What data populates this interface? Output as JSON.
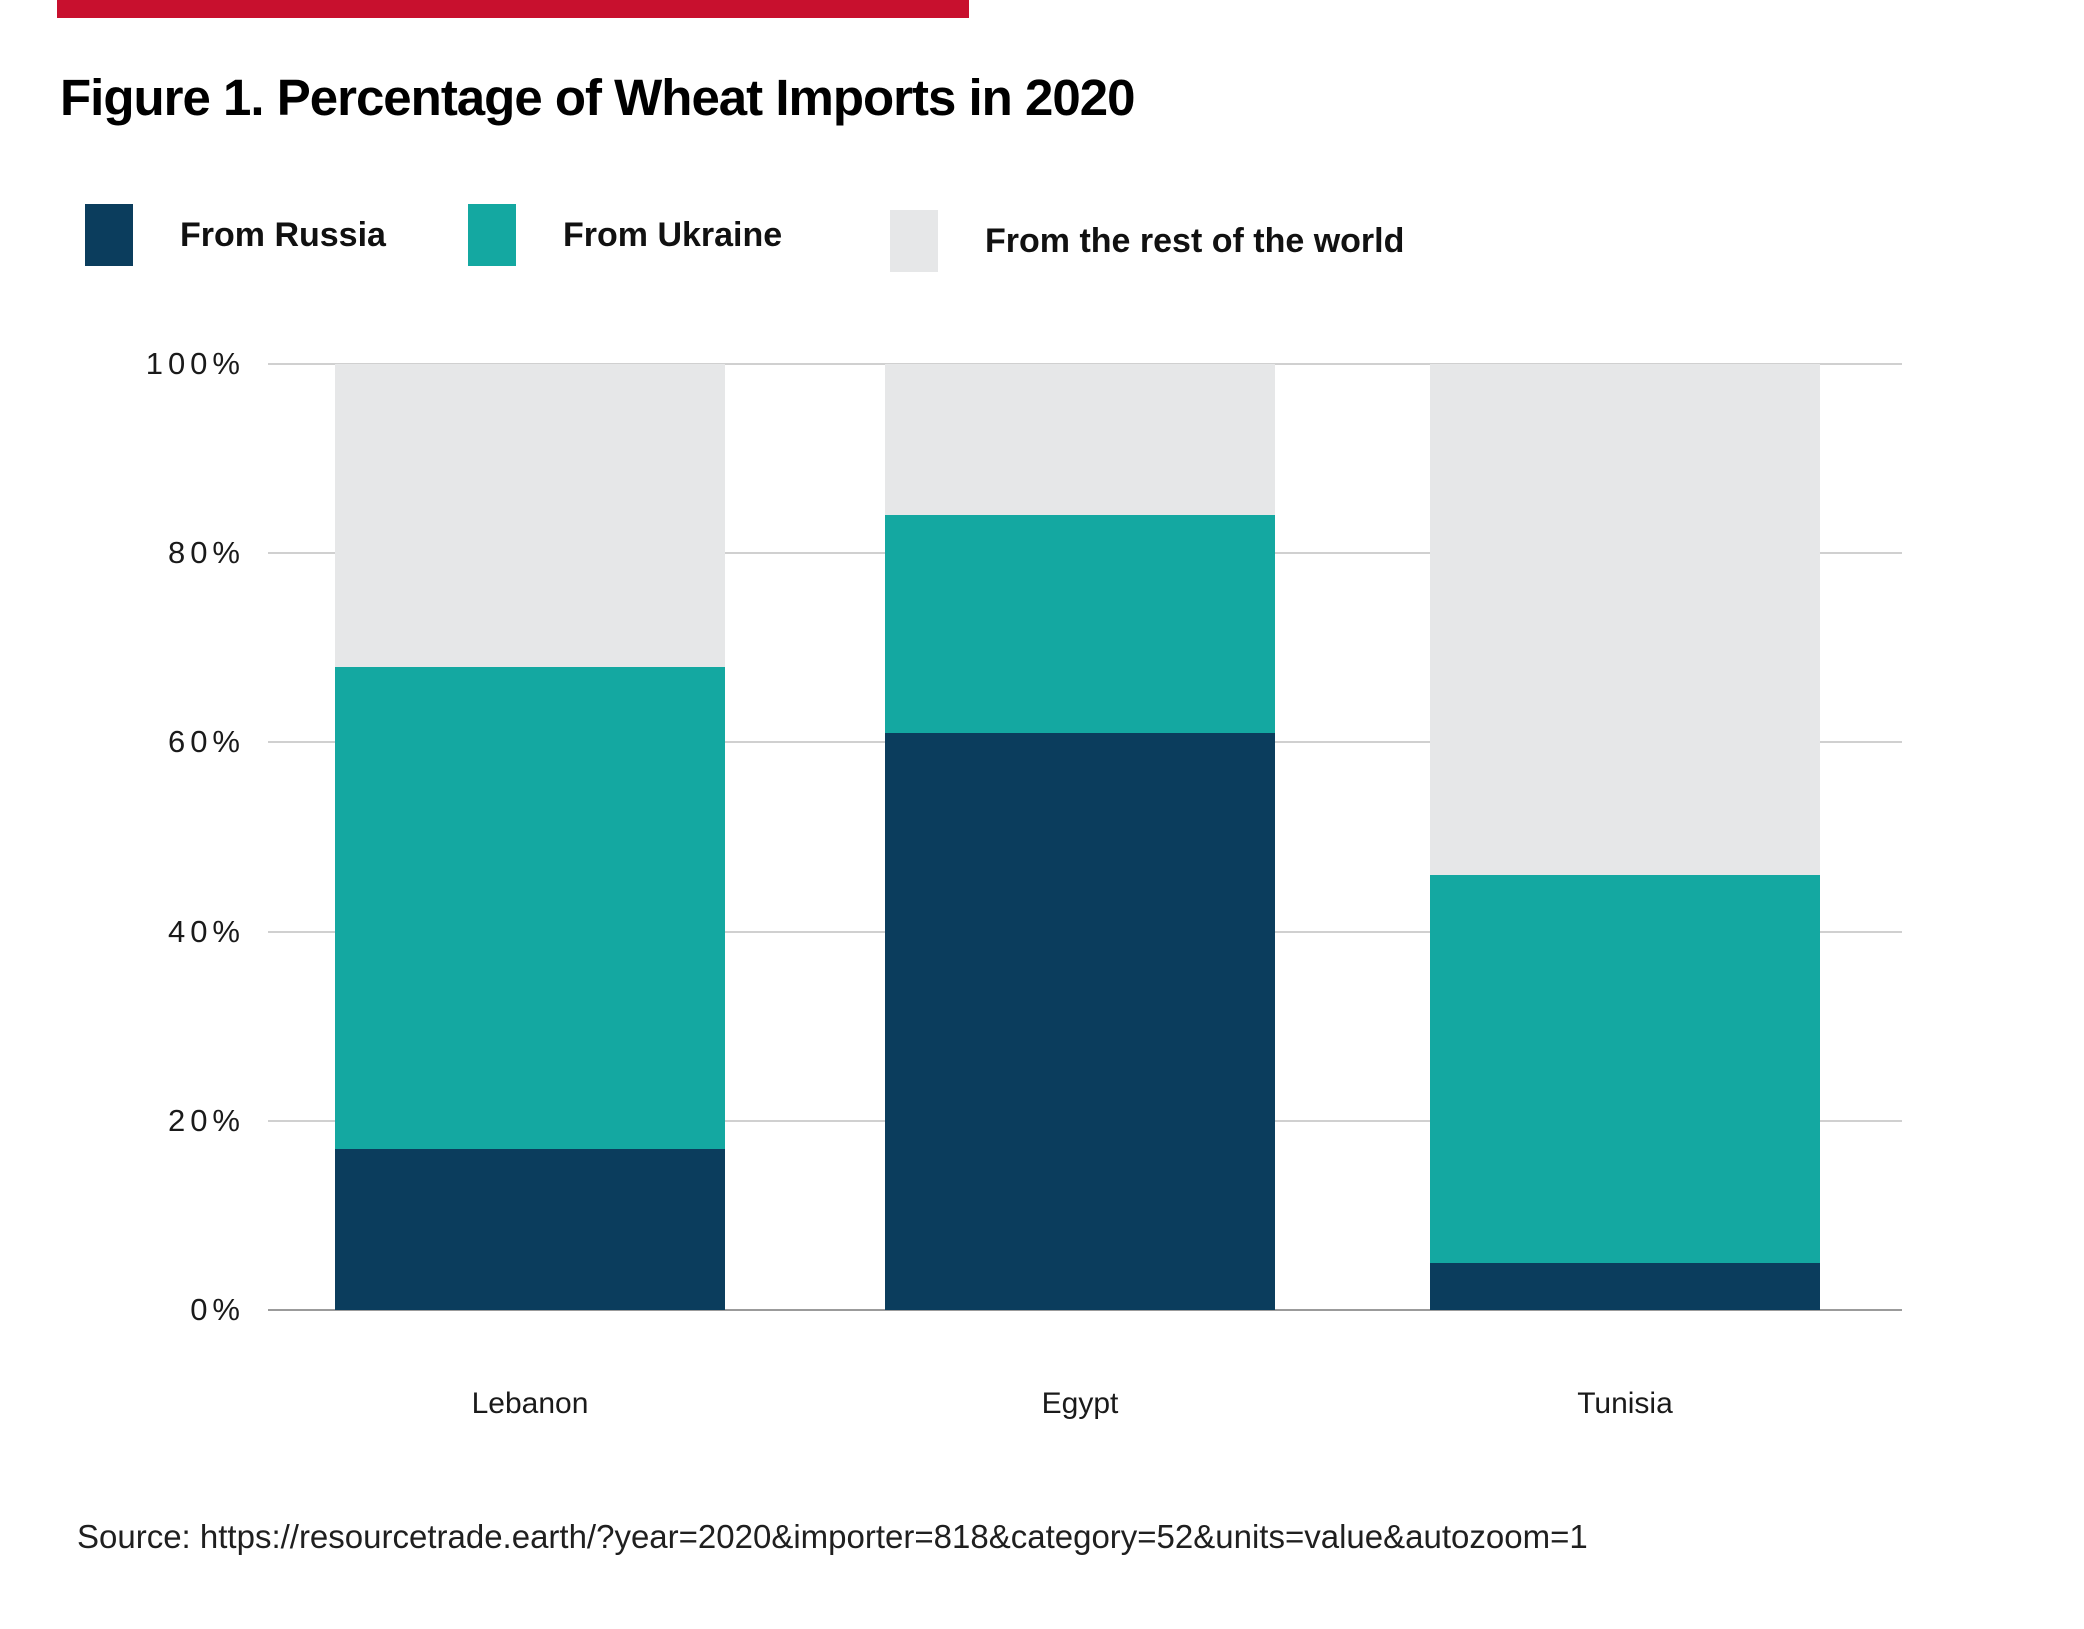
{
  "page": {
    "background": "#ffffff",
    "header_stripe_color": "#c8102e",
    "title": "Figure 1. Percentage of Wheat Imports in 2020",
    "source": "Source: https://resourcetrade.earth/?year=2020&importer=818&category=52&units=value&autozoom=1"
  },
  "legend": {
    "items": [
      {
        "label": "From Russia",
        "color": "#0b3d5d"
      },
      {
        "label": "From Ukraine",
        "color": "#14a8a1"
      },
      {
        "label": "From the rest of the world",
        "color": "#e6e7e8"
      }
    ]
  },
  "chart_data": {
    "type": "bar",
    "stacked": true,
    "title": "Figure 1. Percentage of Wheat Imports in 2020",
    "categories": [
      "Lebanon",
      "Egypt",
      "Tunisia"
    ],
    "series": [
      {
        "name": "From Russia",
        "color": "#0b3d5d",
        "values": [
          17,
          61,
          5
        ]
      },
      {
        "name": "From Ukraine",
        "color": "#14a8a1",
        "values": [
          51,
          23,
          41
        ]
      },
      {
        "name": "From the rest of the world",
        "color": "#e6e7e8",
        "values": [
          32,
          16,
          54
        ]
      }
    ],
    "ylim": [
      0,
      100
    ],
    "yticks": [
      0,
      20,
      40,
      60,
      80,
      100
    ],
    "ytick_suffix": "%",
    "grid": true,
    "gridline_color": "#d0d0d0",
    "baseline_color": "#9b9b9b",
    "legend_position": "top"
  }
}
